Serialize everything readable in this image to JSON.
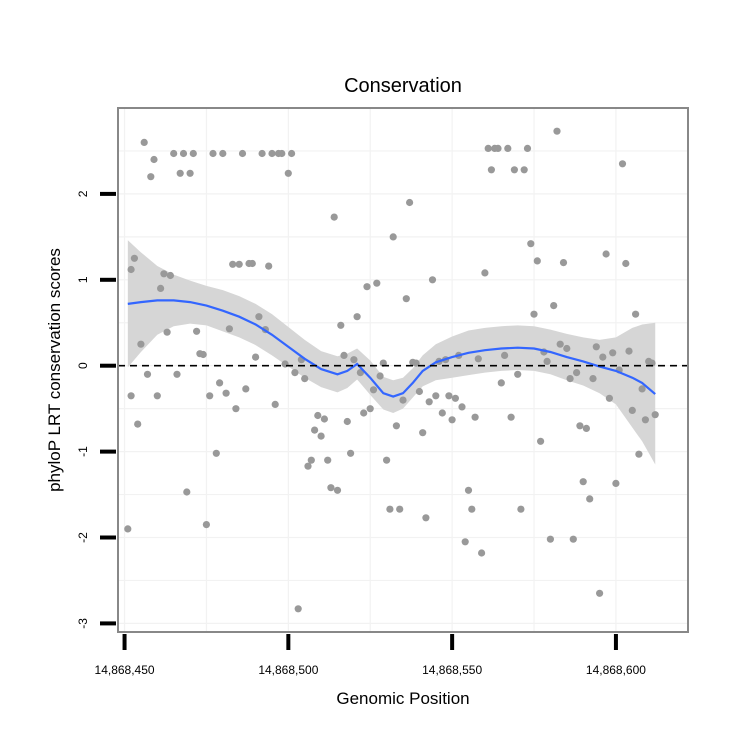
{
  "chart_data": {
    "type": "scatter",
    "title": "Conservation",
    "xlabel": "Genomic Position",
    "ylabel": "phyloP LRT conservation scores",
    "xlim": [
      14868448,
      14868622
    ],
    "ylim": [
      -3.1,
      3.0
    ],
    "xticks": [
      14868450,
      14868500,
      14868550,
      14868600
    ],
    "xtick_labels": [
      "14,868,450",
      "14,868,500",
      "14,868,550",
      "14,868,600"
    ],
    "yticks": [
      -3,
      -2,
      -1,
      0,
      1,
      2
    ],
    "ytick_labels": [
      "-3",
      "-2",
      "-1",
      "0",
      "1",
      "2"
    ],
    "grid": true,
    "reference_line": {
      "y": 0,
      "style": "dashed"
    },
    "colors": {
      "points": "#999999",
      "smooth": "#3366ff",
      "ribbon": "#d6d6d6",
      "grid": "#f2f2f2",
      "frame": "#888888"
    },
    "series": [
      {
        "type": "scatter",
        "points": [
          [
            14868451,
            -1.9
          ],
          [
            14868452,
            -0.35
          ],
          [
            14868452,
            1.12
          ],
          [
            14868453,
            1.25
          ],
          [
            14868454,
            -0.68
          ],
          [
            14868455,
            0.25
          ],
          [
            14868456,
            2.6
          ],
          [
            14868457,
            -0.1
          ],
          [
            14868458,
            2.2
          ],
          [
            14868459,
            2.4
          ],
          [
            14868460,
            -0.35
          ],
          [
            14868461,
            0.9
          ],
          [
            14868462,
            1.07
          ],
          [
            14868463,
            0.39
          ],
          [
            14868464,
            1.05
          ],
          [
            14868465,
            2.47
          ],
          [
            14868466,
            -0.1
          ],
          [
            14868467,
            2.24
          ],
          [
            14868468,
            2.47
          ],
          [
            14868469,
            -1.47
          ],
          [
            14868470,
            2.24
          ],
          [
            14868471,
            2.47
          ],
          [
            14868472,
            0.4
          ],
          [
            14868473,
            0.14
          ],
          [
            14868474,
            0.13
          ],
          [
            14868475,
            -1.85
          ],
          [
            14868476,
            -0.35
          ],
          [
            14868477,
            2.47
          ],
          [
            14868478,
            -1.02
          ],
          [
            14868479,
            -0.2
          ],
          [
            14868480,
            2.47
          ],
          [
            14868481,
            -0.32
          ],
          [
            14868482,
            0.43
          ],
          [
            14868483,
            1.18
          ],
          [
            14868484,
            -0.5
          ],
          [
            14868485,
            1.18
          ],
          [
            14868486,
            2.47
          ],
          [
            14868487,
            -0.27
          ],
          [
            14868488,
            1.19
          ],
          [
            14868489,
            1.19
          ],
          [
            14868490,
            0.1
          ],
          [
            14868491,
            0.57
          ],
          [
            14868492,
            2.47
          ],
          [
            14868493,
            0.42
          ],
          [
            14868494,
            1.16
          ],
          [
            14868495,
            2.47
          ],
          [
            14868496,
            -0.45
          ],
          [
            14868497,
            2.47
          ],
          [
            14868498,
            2.47
          ],
          [
            14868499,
            0.02
          ],
          [
            14868500,
            2.24
          ],
          [
            14868501,
            2.47
          ],
          [
            14868502,
            -0.08
          ],
          [
            14868503,
            -2.83
          ],
          [
            14868504,
            0.07
          ],
          [
            14868505,
            -0.15
          ],
          [
            14868506,
            -1.17
          ],
          [
            14868507,
            -1.1
          ],
          [
            14868508,
            -0.75
          ],
          [
            14868509,
            -0.58
          ],
          [
            14868510,
            -0.82
          ],
          [
            14868511,
            -0.62
          ],
          [
            14868512,
            -1.1
          ],
          [
            14868513,
            -1.42
          ],
          [
            14868514,
            1.73
          ],
          [
            14868515,
            -1.45
          ],
          [
            14868516,
            0.47
          ],
          [
            14868517,
            0.12
          ],
          [
            14868518,
            -0.65
          ],
          [
            14868519,
            -1.02
          ],
          [
            14868520,
            0.07
          ],
          [
            14868521,
            0.57
          ],
          [
            14868522,
            -0.08
          ],
          [
            14868523,
            -0.55
          ],
          [
            14868524,
            0.92
          ],
          [
            14868525,
            -0.5
          ],
          [
            14868526,
            -0.28
          ],
          [
            14868527,
            0.96
          ],
          [
            14868528,
            -0.12
          ],
          [
            14868529,
            0.03
          ],
          [
            14868530,
            -1.1
          ],
          [
            14868531,
            -1.67
          ],
          [
            14868532,
            1.5
          ],
          [
            14868533,
            -0.7
          ],
          [
            14868534,
            -1.67
          ],
          [
            14868535,
            -0.4
          ],
          [
            14868536,
            0.78
          ],
          [
            14868537,
            1.9
          ],
          [
            14868538,
            0.04
          ],
          [
            14868539,
            0.03
          ],
          [
            14868540,
            -0.3
          ],
          [
            14868541,
            -0.78
          ],
          [
            14868542,
            -1.77
          ],
          [
            14868543,
            -0.42
          ],
          [
            14868544,
            1.0
          ],
          [
            14868545,
            -0.35
          ],
          [
            14868546,
            0.05
          ],
          [
            14868547,
            -0.55
          ],
          [
            14868548,
            0.07
          ],
          [
            14868549,
            -0.35
          ],
          [
            14868550,
            -0.63
          ],
          [
            14868551,
            -0.38
          ],
          [
            14868552,
            0.12
          ],
          [
            14868553,
            -0.48
          ],
          [
            14868554,
            -2.05
          ],
          [
            14868555,
            -1.45
          ],
          [
            14868556,
            -1.67
          ],
          [
            14868557,
            -0.6
          ],
          [
            14868558,
            0.08
          ],
          [
            14868559,
            -2.18
          ],
          [
            14868560,
            1.08
          ],
          [
            14868561,
            2.53
          ],
          [
            14868562,
            2.28
          ],
          [
            14868563,
            2.53
          ],
          [
            14868564,
            2.53
          ],
          [
            14868565,
            -0.2
          ],
          [
            14868566,
            0.12
          ],
          [
            14868567,
            2.53
          ],
          [
            14868568,
            -0.6
          ],
          [
            14868569,
            2.28
          ],
          [
            14868570,
            -0.1
          ],
          [
            14868571,
            -1.67
          ],
          [
            14868572,
            2.28
          ],
          [
            14868573,
            2.53
          ],
          [
            14868574,
            1.42
          ],
          [
            14868575,
            0.6
          ],
          [
            14868576,
            1.22
          ],
          [
            14868577,
            -0.88
          ],
          [
            14868578,
            0.16
          ],
          [
            14868579,
            0.05
          ],
          [
            14868580,
            -2.02
          ],
          [
            14868581,
            0.7
          ],
          [
            14868582,
            2.73
          ],
          [
            14868583,
            0.25
          ],
          [
            14868584,
            1.2
          ],
          [
            14868585,
            0.2
          ],
          [
            14868586,
            -0.15
          ],
          [
            14868587,
            -2.02
          ],
          [
            14868588,
            -0.08
          ],
          [
            14868589,
            -0.7
          ],
          [
            14868590,
            -1.35
          ],
          [
            14868591,
            -0.73
          ],
          [
            14868592,
            -1.55
          ],
          [
            14868593,
            -0.15
          ],
          [
            14868594,
            0.22
          ],
          [
            14868595,
            -2.65
          ],
          [
            14868596,
            0.1
          ],
          [
            14868597,
            1.3
          ],
          [
            14868598,
            -0.38
          ],
          [
            14868599,
            0.15
          ],
          [
            14868600,
            -1.37
          ],
          [
            14868601,
            -0.05
          ],
          [
            14868602,
            2.35
          ],
          [
            14868603,
            1.19
          ],
          [
            14868604,
            0.17
          ],
          [
            14868605,
            -0.52
          ],
          [
            14868606,
            0.6
          ],
          [
            14868607,
            -1.03
          ],
          [
            14868608,
            -0.27
          ],
          [
            14868609,
            -0.63
          ],
          [
            14868610,
            0.05
          ],
          [
            14868611,
            0.03
          ],
          [
            14868612,
            -0.57
          ]
        ]
      },
      {
        "type": "smooth",
        "points": [
          [
            14868451,
            0.72
          ],
          [
            14868455,
            0.74
          ],
          [
            14868460,
            0.76
          ],
          [
            14868465,
            0.76
          ],
          [
            14868470,
            0.74
          ],
          [
            14868475,
            0.7
          ],
          [
            14868480,
            0.64
          ],
          [
            14868485,
            0.57
          ],
          [
            14868490,
            0.48
          ],
          [
            14868495,
            0.36
          ],
          [
            14868500,
            0.22
          ],
          [
            14868505,
            0.08
          ],
          [
            14868510,
            -0.04
          ],
          [
            14868515,
            -0.1
          ],
          [
            14868518,
            -0.06
          ],
          [
            14868521,
            0.02
          ],
          [
            14868525,
            -0.14
          ],
          [
            14868529,
            -0.32
          ],
          [
            14868532,
            -0.36
          ],
          [
            14868535,
            -0.32
          ],
          [
            14868538,
            -0.2
          ],
          [
            14868541,
            -0.06
          ],
          [
            14868545,
            0.04
          ],
          [
            14868550,
            0.1
          ],
          [
            14868555,
            0.15
          ],
          [
            14868560,
            0.18
          ],
          [
            14868565,
            0.2
          ],
          [
            14868570,
            0.21
          ],
          [
            14868575,
            0.2
          ],
          [
            14868580,
            0.16
          ],
          [
            14868585,
            0.1
          ],
          [
            14868590,
            0.05
          ],
          [
            14868595,
            -0.01
          ],
          [
            14868600,
            -0.06
          ],
          [
            14868605,
            -0.14
          ],
          [
            14868608,
            -0.2
          ],
          [
            14868612,
            -0.33
          ]
        ],
        "upper": [
          [
            14868451,
            1.46
          ],
          [
            14868455,
            1.32
          ],
          [
            14868460,
            1.16
          ],
          [
            14868465,
            1.06
          ],
          [
            14868470,
            0.99
          ],
          [
            14868475,
            0.93
          ],
          [
            14868480,
            0.88
          ],
          [
            14868485,
            0.81
          ],
          [
            14868490,
            0.72
          ],
          [
            14868495,
            0.6
          ],
          [
            14868500,
            0.45
          ],
          [
            14868505,
            0.3
          ],
          [
            14868510,
            0.17
          ],
          [
            14868515,
            0.11
          ],
          [
            14868518,
            0.14
          ],
          [
            14868521,
            0.2
          ],
          [
            14868525,
            0.06
          ],
          [
            14868529,
            -0.13
          ],
          [
            14868532,
            -0.17
          ],
          [
            14868535,
            -0.14
          ],
          [
            14868538,
            -0.03
          ],
          [
            14868541,
            0.12
          ],
          [
            14868545,
            0.25
          ],
          [
            14868550,
            0.34
          ],
          [
            14868555,
            0.41
          ],
          [
            14868560,
            0.44
          ],
          [
            14868565,
            0.46
          ],
          [
            14868570,
            0.47
          ],
          [
            14868575,
            0.46
          ],
          [
            14868580,
            0.42
          ],
          [
            14868585,
            0.37
          ],
          [
            14868590,
            0.33
          ],
          [
            14868595,
            0.3
          ],
          [
            14868600,
            0.33
          ],
          [
            14868605,
            0.44
          ],
          [
            14868608,
            0.48
          ],
          [
            14868612,
            0.5
          ]
        ],
        "lower": [
          [
            14868451,
            -0.02
          ],
          [
            14868455,
            0.16
          ],
          [
            14868460,
            0.36
          ],
          [
            14868465,
            0.46
          ],
          [
            14868470,
            0.49
          ],
          [
            14868475,
            0.47
          ],
          [
            14868480,
            0.4
          ],
          [
            14868485,
            0.33
          ],
          [
            14868490,
            0.24
          ],
          [
            14868495,
            0.12
          ],
          [
            14868500,
            -0.01
          ],
          [
            14868505,
            -0.14
          ],
          [
            14868510,
            -0.25
          ],
          [
            14868515,
            -0.31
          ],
          [
            14868518,
            -0.26
          ],
          [
            14868521,
            -0.16
          ],
          [
            14868525,
            -0.34
          ],
          [
            14868529,
            -0.51
          ],
          [
            14868532,
            -0.55
          ],
          [
            14868535,
            -0.5
          ],
          [
            14868538,
            -0.37
          ],
          [
            14868541,
            -0.24
          ],
          [
            14868545,
            -0.17
          ],
          [
            14868550,
            -0.14
          ],
          [
            14868555,
            -0.11
          ],
          [
            14868560,
            -0.08
          ],
          [
            14868565,
            -0.06
          ],
          [
            14868570,
            -0.05
          ],
          [
            14868575,
            -0.06
          ],
          [
            14868580,
            -0.1
          ],
          [
            14868585,
            -0.17
          ],
          [
            14868590,
            -0.23
          ],
          [
            14868595,
            -0.32
          ],
          [
            14868600,
            -0.45
          ],
          [
            14868605,
            -0.72
          ],
          [
            14868608,
            -0.88
          ],
          [
            14868612,
            -1.15
          ]
        ]
      }
    ]
  }
}
